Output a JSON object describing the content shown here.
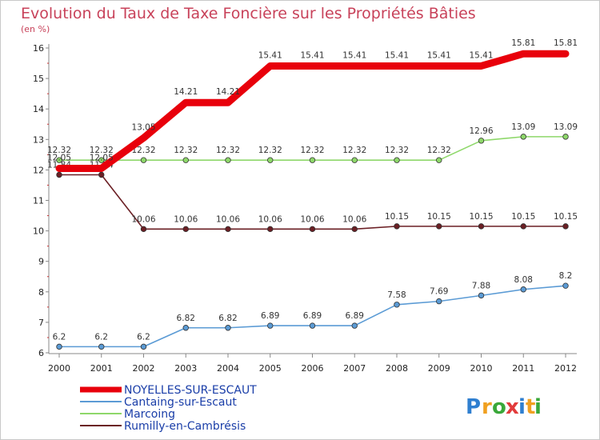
{
  "chart_data": {
    "type": "line",
    "title": "Evolution du Taux de Taxe Foncière sur les Propriétés Bâties",
    "ylabel": "(en %)",
    "xlabel": "",
    "ylim": [
      6,
      16
    ],
    "yticks": [
      "6",
      "7",
      "8",
      "9",
      "10",
      "11",
      "12",
      "13",
      "14",
      "15",
      "16"
    ],
    "categories": [
      "2000",
      "2001",
      "2002",
      "2003",
      "2004",
      "2005",
      "2006",
      "2007",
      "2008",
      "2009",
      "2010",
      "2011",
      "2012"
    ],
    "series": [
      {
        "name": "Rumilly-en-Cambrésis",
        "color": "#6b1f24",
        "values": [
          11.84,
          11.84,
          10.06,
          10.06,
          10.06,
          10.06,
          10.06,
          10.06,
          10.15,
          10.15,
          10.15,
          10.15,
          10.15
        ],
        "labels": [
          "11.84",
          "11.84",
          "10.06",
          "10.06",
          "10.06",
          "10.06",
          "10.06",
          "10.06",
          "10.15",
          "10.15",
          "10.15",
          "10.15",
          "10.15"
        ]
      },
      {
        "name": "Marcoing",
        "color": "#8ed86a",
        "values": [
          12.32,
          12.32,
          12.32,
          12.32,
          12.32,
          12.32,
          12.32,
          12.32,
          12.32,
          12.32,
          12.96,
          13.09,
          13.09
        ],
        "labels": [
          "12.32",
          "12.32",
          "12.32",
          "12.32",
          "12.32",
          "12.32",
          "12.32",
          "12.32",
          "12.32",
          "12.32",
          "12.96",
          "13.09",
          "13.09"
        ]
      },
      {
        "name": "Cantaing-sur-Escaut",
        "color": "#5b9bd5",
        "values": [
          6.2,
          6.2,
          6.2,
          6.82,
          6.82,
          6.89,
          6.89,
          6.89,
          7.58,
          7.69,
          7.88,
          8.08,
          8.2
        ],
        "labels": [
          "6.2",
          "6.2",
          "6.2",
          "6.82",
          "6.82",
          "6.89",
          "6.89",
          "6.89",
          "7.58",
          "7.69",
          "7.88",
          "8.08",
          "8.2"
        ]
      },
      {
        "name": "NOYELLES-SUR-ESCAUT",
        "color": "#e8000b",
        "values": [
          12.05,
          12.05,
          13.05,
          14.21,
          14.21,
          15.41,
          15.41,
          15.41,
          15.41,
          15.41,
          15.41,
          15.81,
          15.81
        ],
        "labels": [
          "12.05",
          "12.05",
          "13.05",
          "14.21",
          "14.21",
          "15.41",
          "15.41",
          "15.41",
          "15.41",
          "15.41",
          "15.41",
          "15.81",
          "15.81"
        ]
      }
    ],
    "legend": [
      "NOYELLES-SUR-ESCAUT",
      "Cantaing-sur-Escaut",
      "Marcoing",
      "Rumilly-en-Cambrésis"
    ],
    "legend_position": "bottom-left",
    "grid": false
  },
  "logo": {
    "letters": [
      "P",
      "r",
      "o",
      "x",
      "i",
      "t",
      "i"
    ],
    "colors": [
      "#2f7fd0",
      "#f0a020",
      "#3aa83a",
      "#e23b3b",
      "#2f7fd0",
      "#f0a020",
      "#3aa83a"
    ]
  }
}
